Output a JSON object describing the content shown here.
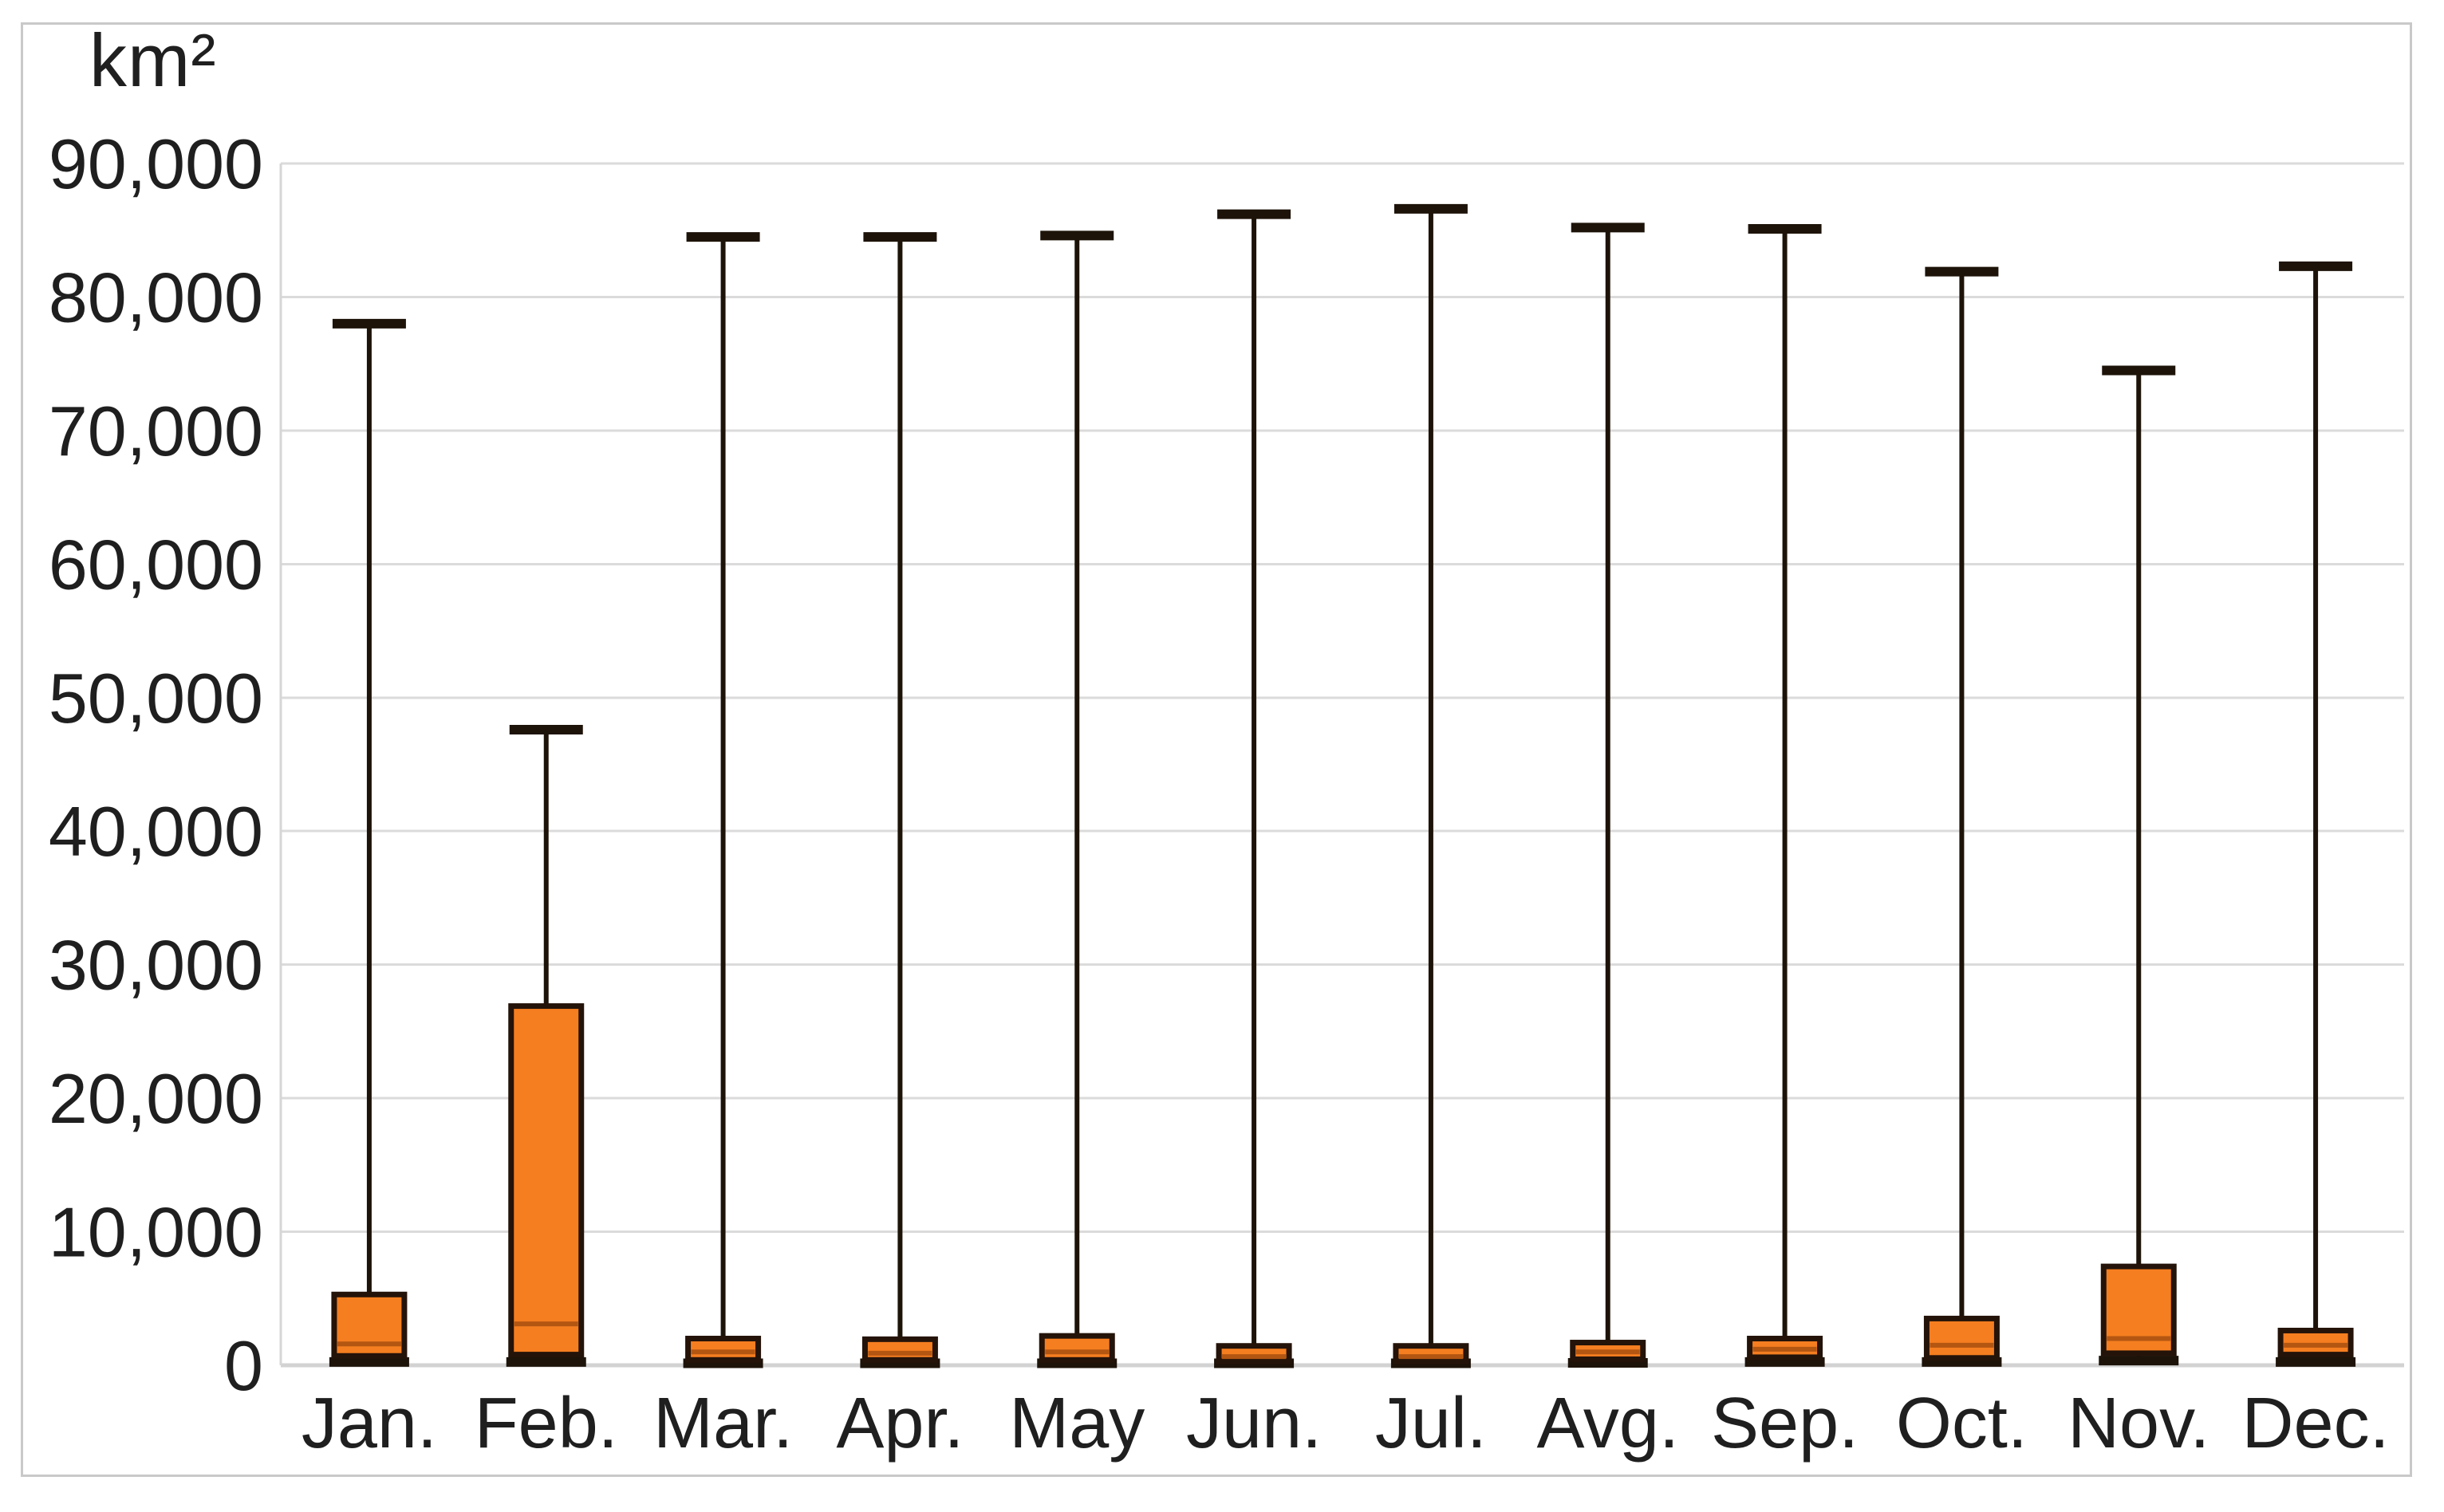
{
  "chart": {
    "axis_title": "km²",
    "y_axis": {
      "tick_values": [
        0,
        10000,
        20000,
        30000,
        40000,
        50000,
        60000,
        70000,
        80000,
        90000
      ],
      "tick_labels": [
        "0",
        "10,000",
        "20,000",
        "30,000",
        "40,000",
        "50,000",
        "60,000",
        "70,000",
        "80,000",
        "90,000"
      ],
      "min": 0,
      "max": 90000
    }
  },
  "chart_data": {
    "type": "boxplot",
    "title": "",
    "ylabel": "km²",
    "xlabel": "",
    "ylim": [
      0,
      90000
    ],
    "grid": true,
    "legend": false,
    "categories": [
      "Jan.",
      "Feb.",
      "Mar.",
      "Apr.",
      "May",
      "Jun.",
      "Jul.",
      "Avg.",
      "Sep.",
      "Oct.",
      "Nov.",
      "Dec."
    ],
    "series": [
      {
        "month": "Jan.",
        "whisker_low": 250,
        "q1": 700,
        "median": 1600,
        "q3": 5300,
        "whisker_high": 78000
      },
      {
        "month": "Feb.",
        "whisker_low": 250,
        "q1": 800,
        "median": 3100,
        "q3": 26900,
        "whisker_high": 47600
      },
      {
        "month": "Mar.",
        "whisker_low": 150,
        "q1": 400,
        "median": 1000,
        "q3": 2000,
        "whisker_high": 84500
      },
      {
        "month": "Apr.",
        "whisker_low": 150,
        "q1": 400,
        "median": 900,
        "q3": 1950,
        "whisker_high": 84500
      },
      {
        "month": "May",
        "whisker_low": 150,
        "q1": 400,
        "median": 1000,
        "q3": 2200,
        "whisker_high": 84600
      },
      {
        "month": "Jun.",
        "whisker_low": 150,
        "q1": 300,
        "median": 650,
        "q3": 1450,
        "whisker_high": 86200
      },
      {
        "month": "Jul.",
        "whisker_low": 150,
        "q1": 300,
        "median": 650,
        "q3": 1450,
        "whisker_high": 86600
      },
      {
        "month": "Avg.",
        "whisker_low": 180,
        "q1": 450,
        "median": 1000,
        "q3": 1700,
        "whisker_high": 85200
      },
      {
        "month": "Sep.",
        "whisker_low": 250,
        "q1": 600,
        "median": 1200,
        "q3": 2000,
        "whisker_high": 85100
      },
      {
        "month": "Oct.",
        "whisker_low": 250,
        "q1": 550,
        "median": 1500,
        "q3": 3500,
        "whisker_high": 81900
      },
      {
        "month": "Nov.",
        "whisker_low": 350,
        "q1": 900,
        "median": 2000,
        "q3": 7400,
        "whisker_high": 74500
      },
      {
        "month": "Dec.",
        "whisker_low": 250,
        "q1": 800,
        "median": 1500,
        "q3": 2600,
        "whisker_high": 82300
      }
    ]
  },
  "colors": {
    "box_fill": "#F57E20",
    "box_border": "#241309",
    "median_line": "#B35612",
    "whisker": "#1D1309",
    "gridline": "#DBDBDB",
    "baseline": "#D2D2D2",
    "axis_line": "#D6D6D6",
    "text": "#1F1F1F",
    "frame_border": "#C9C9C9",
    "background": "#FFFFFF"
  }
}
